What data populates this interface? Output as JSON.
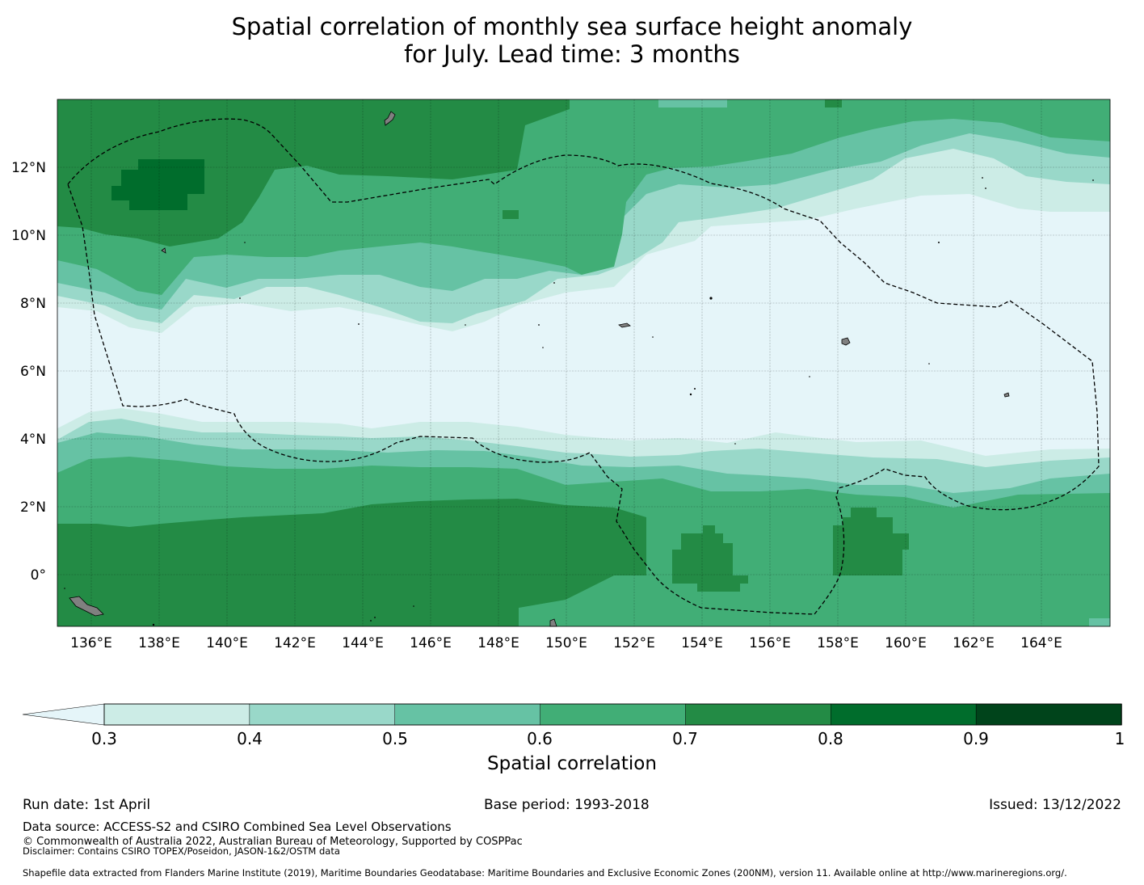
{
  "title": {
    "line1": "Spatial correlation of monthly sea surface height anomaly",
    "line2": "for July. Lead time: 3 months"
  },
  "map": {
    "lon_range": [
      135,
      166
    ],
    "lat_range": [
      -1.5,
      14
    ],
    "lon_ticks": [
      "136°E",
      "138°E",
      "140°E",
      "142°E",
      "144°E",
      "146°E",
      "148°E",
      "150°E",
      "152°E",
      "154°E",
      "156°E",
      "158°E",
      "160°E",
      "162°E",
      "164°E"
    ],
    "lat_ticks": [
      "12°N",
      "10°N",
      "8°N",
      "6°N",
      "4°N",
      "2°N",
      "0°"
    ],
    "gridlines": true,
    "eez_boundary_style": "dashed",
    "land_color": "#808080"
  },
  "colorbar": {
    "label": "Spatial correlation",
    "ticks": [
      "0.3",
      "0.4",
      "0.5",
      "0.6",
      "0.7",
      "0.8",
      "0.9",
      "1"
    ],
    "colors": [
      "#e5f5f9",
      "#ccece6",
      "#99d8c9",
      "#66c2a4",
      "#41ae76",
      "#238b45",
      "#006d2c",
      "#00441b"
    ],
    "extend": "min"
  },
  "footer": {
    "run_date": "Run date: 1st April",
    "base_period": "Base period: 1993-2018",
    "issued": "Issued: 13/12/2022",
    "data_source": "Data source: ACCESS-S2 and CSIRO Combined Sea Level Observations",
    "copyright": "© Commonwealth of Australia 2022, Australian Bureau of Meteorology, Supported by COSPPac",
    "disclaimer": "Disclaimer: Contains CSIRO TOPEX/Poseidon, JASON-1&2/OSTM data",
    "shapefile": "Shapefile data extracted from Flanders Marine Institute (2019), Maritime Boundaries Geodatabase: Maritime Boundaries and Exclusive Economic Zones (200NM), version 11. Available online at http://www.marineregions.org/."
  }
}
